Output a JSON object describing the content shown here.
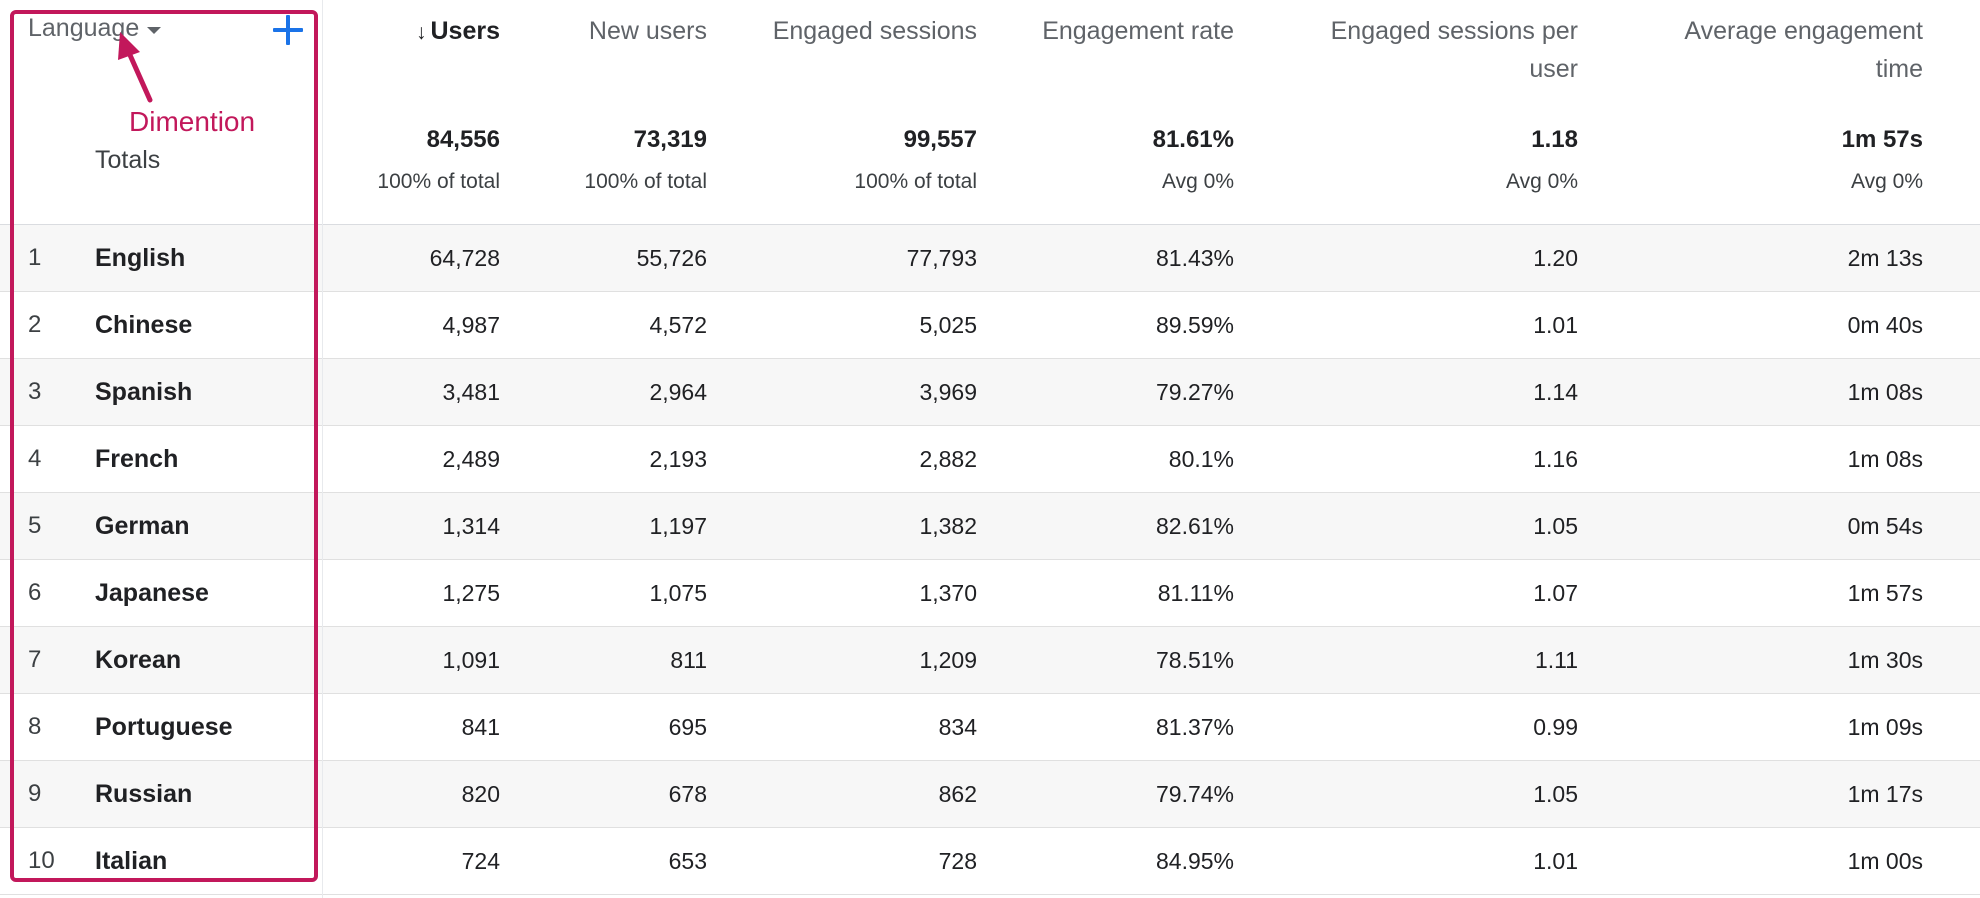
{
  "header": {
    "dimension_label": "Language",
    "add_dimension_icon": "plus-icon",
    "columns": [
      {
        "label": "Users",
        "sorted": true,
        "sort_icon": "arrow-down-icon",
        "arrow": "↓"
      },
      {
        "label": "New users"
      },
      {
        "label": "Engaged sessions"
      },
      {
        "label": "Engagement rate"
      },
      {
        "label": "Engaged sessions per user"
      },
      {
        "label": "Average engagement time"
      }
    ]
  },
  "totals": {
    "label": "Totals",
    "values": [
      "84,556",
      "73,319",
      "99,557",
      "81.61%",
      "1.18",
      "1m 57s"
    ],
    "subs": [
      "100% of total",
      "100% of total",
      "100% of total",
      "Avg 0%",
      "Avg 0%",
      "Avg 0%"
    ]
  },
  "rows": [
    {
      "idx": "1",
      "lang": "English",
      "v": [
        "64,728",
        "55,726",
        "77,793",
        "81.43%",
        "1.20",
        "2m 13s"
      ]
    },
    {
      "idx": "2",
      "lang": "Chinese",
      "v": [
        "4,987",
        "4,572",
        "5,025",
        "89.59%",
        "1.01",
        "0m 40s"
      ]
    },
    {
      "idx": "3",
      "lang": "Spanish",
      "v": [
        "3,481",
        "2,964",
        "3,969",
        "79.27%",
        "1.14",
        "1m 08s"
      ]
    },
    {
      "idx": "4",
      "lang": "French",
      "v": [
        "2,489",
        "2,193",
        "2,882",
        "80.1%",
        "1.16",
        "1m 08s"
      ]
    },
    {
      "idx": "5",
      "lang": "German",
      "v": [
        "1,314",
        "1,197",
        "1,382",
        "82.61%",
        "1.05",
        "0m 54s"
      ]
    },
    {
      "idx": "6",
      "lang": "Japanese",
      "v": [
        "1,275",
        "1,075",
        "1,370",
        "81.11%",
        "1.07",
        "1m 57s"
      ]
    },
    {
      "idx": "7",
      "lang": "Korean",
      "v": [
        "1,091",
        "811",
        "1,209",
        "78.51%",
        "1.11",
        "1m 30s"
      ]
    },
    {
      "idx": "8",
      "lang": "Portuguese",
      "v": [
        "841",
        "695",
        "834",
        "81.37%",
        "0.99",
        "1m 09s"
      ]
    },
    {
      "idx": "9",
      "lang": "Russian",
      "v": [
        "820",
        "678",
        "862",
        "79.74%",
        "1.05",
        "1m 17s"
      ]
    },
    {
      "idx": "10",
      "lang": "Italian",
      "v": [
        "724",
        "653",
        "728",
        "84.95%",
        "1.01",
        "1m 00s"
      ]
    }
  ],
  "annotation": {
    "text": "Dimention",
    "color": "#c2185b"
  }
}
